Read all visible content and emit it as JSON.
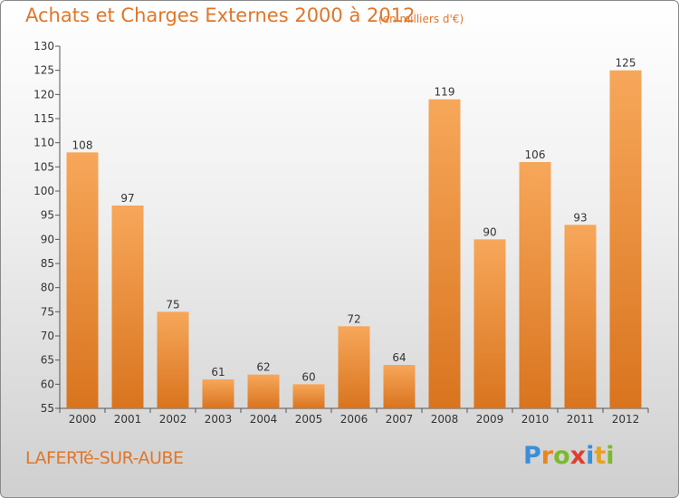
{
  "header": {
    "title": "Achats et Charges Externes 2000 à 2012",
    "subtitle": "(en milliers d'€)"
  },
  "footer": {
    "place": "LAFERTé-SUR-AUBE",
    "logo_letters": [
      {
        "ch": "P",
        "color": "#3a8fd8"
      },
      {
        "ch": "r",
        "color": "#e8861e"
      },
      {
        "ch": "o",
        "color": "#7cba2a"
      },
      {
        "ch": "x",
        "color": "#e23b2f"
      },
      {
        "ch": "i",
        "color": "#3a8fd8"
      },
      {
        "ch": "t",
        "color": "#e8a21e"
      },
      {
        "ch": "i",
        "color": "#7cba2a"
      }
    ]
  },
  "colors": {
    "bar_top": "#f7a75a",
    "bar_bottom": "#d9741e",
    "axis": "#555555",
    "text": "#333333"
  },
  "chart_data": {
    "type": "bar",
    "categories": [
      "2000",
      "2001",
      "2002",
      "2003",
      "2004",
      "2005",
      "2006",
      "2007",
      "2008",
      "2009",
      "2010",
      "2011",
      "2012"
    ],
    "values": [
      108,
      97,
      75,
      61,
      62,
      60,
      72,
      64,
      119,
      90,
      106,
      93,
      125
    ],
    "title": "Achats et Charges Externes 2000 à 2012",
    "ylim": [
      55,
      130
    ],
    "ytick_step": 5,
    "grid": false,
    "legend": "none"
  }
}
